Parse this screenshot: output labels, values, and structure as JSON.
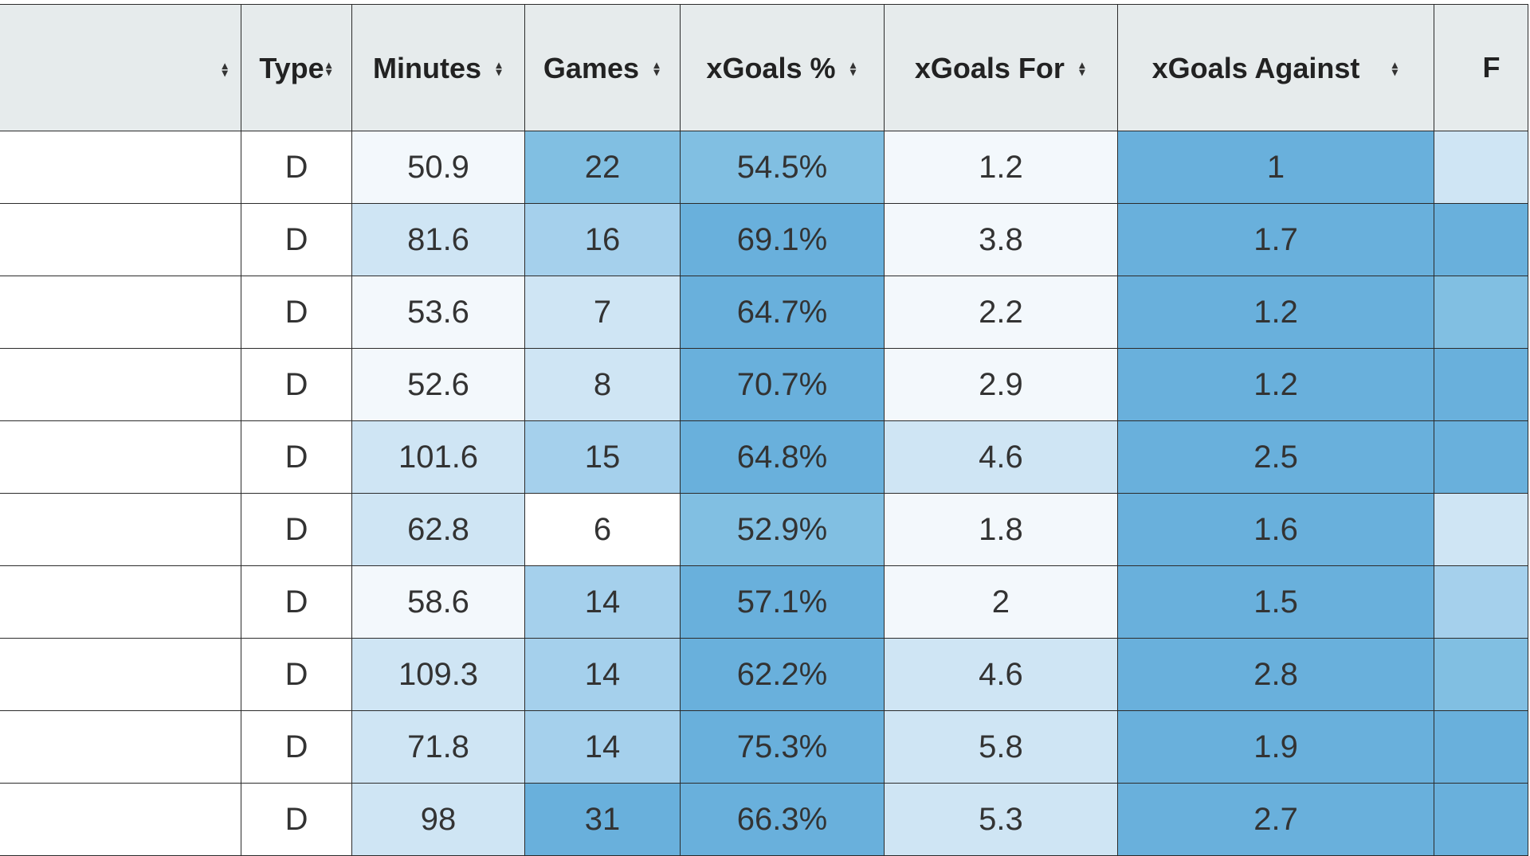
{
  "table": {
    "columns": [
      {
        "key": "name",
        "label": ""
      },
      {
        "key": "type",
        "label": "Type"
      },
      {
        "key": "minutes",
        "label": "Minutes"
      },
      {
        "key": "games",
        "label": "Games"
      },
      {
        "key": "xg_pct",
        "label": "xGoals %"
      },
      {
        "key": "xg_for",
        "label": "xGoals For"
      },
      {
        "key": "xg_against",
        "label": "xGoals Against"
      },
      {
        "key": "next",
        "label": "F"
      }
    ],
    "rows": [
      {
        "type": "D",
        "minutes": "50.9",
        "games": "22",
        "xg_pct": "54.5%",
        "xg_for": "1.2",
        "xg_against": "1"
      },
      {
        "type": "D",
        "minutes": "81.6",
        "games": "16",
        "xg_pct": "69.1%",
        "xg_for": "3.8",
        "xg_against": "1.7"
      },
      {
        "type": "D",
        "minutes": "53.6",
        "games": "7",
        "xg_pct": "64.7%",
        "xg_for": "2.2",
        "xg_against": "1.2"
      },
      {
        "type": "D",
        "minutes": "52.6",
        "games": "8",
        "xg_pct": "70.7%",
        "xg_for": "2.9",
        "xg_against": "1.2"
      },
      {
        "type": "D",
        "minutes": "101.6",
        "games": "15",
        "xg_pct": "64.8%",
        "xg_for": "4.6",
        "xg_against": "2.5"
      },
      {
        "type": "D",
        "minutes": "62.8",
        "games": "6",
        "xg_pct": "52.9%",
        "xg_for": "1.8",
        "xg_against": "1.6"
      },
      {
        "type": "D",
        "minutes": "58.6",
        "games": "14",
        "xg_pct": "57.1%",
        "xg_for": "2",
        "xg_against": "1.5"
      },
      {
        "type": "D",
        "minutes": "109.3",
        "games": "14",
        "xg_pct": "62.2%",
        "xg_for": "4.6",
        "xg_against": "2.8"
      },
      {
        "type": "D",
        "minutes": "71.8",
        "games": "14",
        "xg_pct": "75.3%",
        "xg_for": "5.8",
        "xg_against": "1.9"
      },
      {
        "type": "D",
        "minutes": "98",
        "games": "31",
        "xg_pct": "66.3%",
        "xg_for": "5.3",
        "xg_against": "2.7"
      }
    ],
    "shading": [
      {
        "minutes": 0,
        "games": 3,
        "xg_pct": 3,
        "xg_for": 0,
        "xg_against": 4,
        "next": 1
      },
      {
        "minutes": 1,
        "games": 2,
        "xg_pct": 4,
        "xg_for": 0,
        "xg_against": 4,
        "next": 4
      },
      {
        "minutes": 0,
        "games": 1,
        "xg_pct": 4,
        "xg_for": 0,
        "xg_against": 4,
        "next": 3
      },
      {
        "minutes": 0,
        "games": 1,
        "xg_pct": 4,
        "xg_for": 0,
        "xg_against": 4,
        "next": 4
      },
      {
        "minutes": 1,
        "games": 2,
        "xg_pct": 4,
        "xg_for": 1,
        "xg_against": 4,
        "next": 4
      },
      {
        "minutes": 1,
        "games": -1,
        "xg_pct": 3,
        "xg_for": 0,
        "xg_against": 4,
        "next": 1
      },
      {
        "minutes": 0,
        "games": 2,
        "xg_pct": 4,
        "xg_for": 0,
        "xg_against": 4,
        "next": 2
      },
      {
        "minutes": 1,
        "games": 2,
        "xg_pct": 4,
        "xg_for": 1,
        "xg_against": 4,
        "next": 3
      },
      {
        "minutes": 1,
        "games": 2,
        "xg_pct": 4,
        "xg_for": 1,
        "xg_against": 4,
        "next": 4
      },
      {
        "minutes": 1,
        "games": 4,
        "xg_pct": 4,
        "xg_for": 1,
        "xg_against": 4,
        "next": 4
      }
    ],
    "sort_icon": "sort-updown-icon"
  }
}
